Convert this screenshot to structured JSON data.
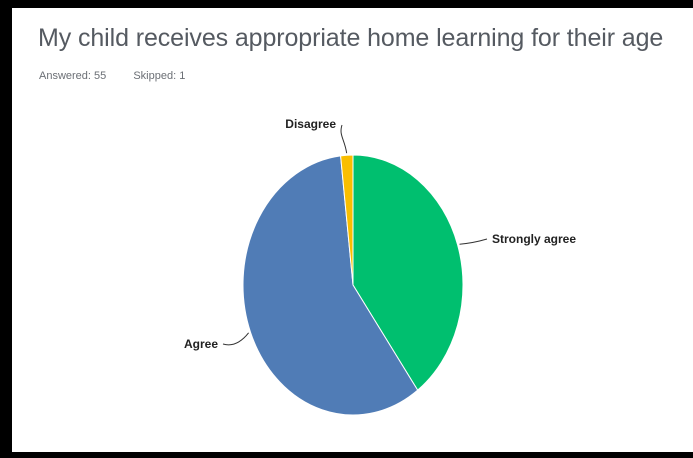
{
  "header": {
    "title": "My child receives appropriate home learning for their age",
    "answered": "Answered: 55",
    "skipped": "Skipped: 1"
  },
  "chart_data": {
    "type": "pie",
    "title": "My child receives appropriate home learning for their age",
    "slices": [
      {
        "label": "Strongly agree",
        "value": 40.0,
        "color": "#00bf6f"
      },
      {
        "label": "Agree",
        "value": 58.2,
        "color": "#507cb6"
      },
      {
        "label": "Disagree",
        "value": 1.8,
        "color": "#f9be00"
      }
    ],
    "legend": "none"
  }
}
